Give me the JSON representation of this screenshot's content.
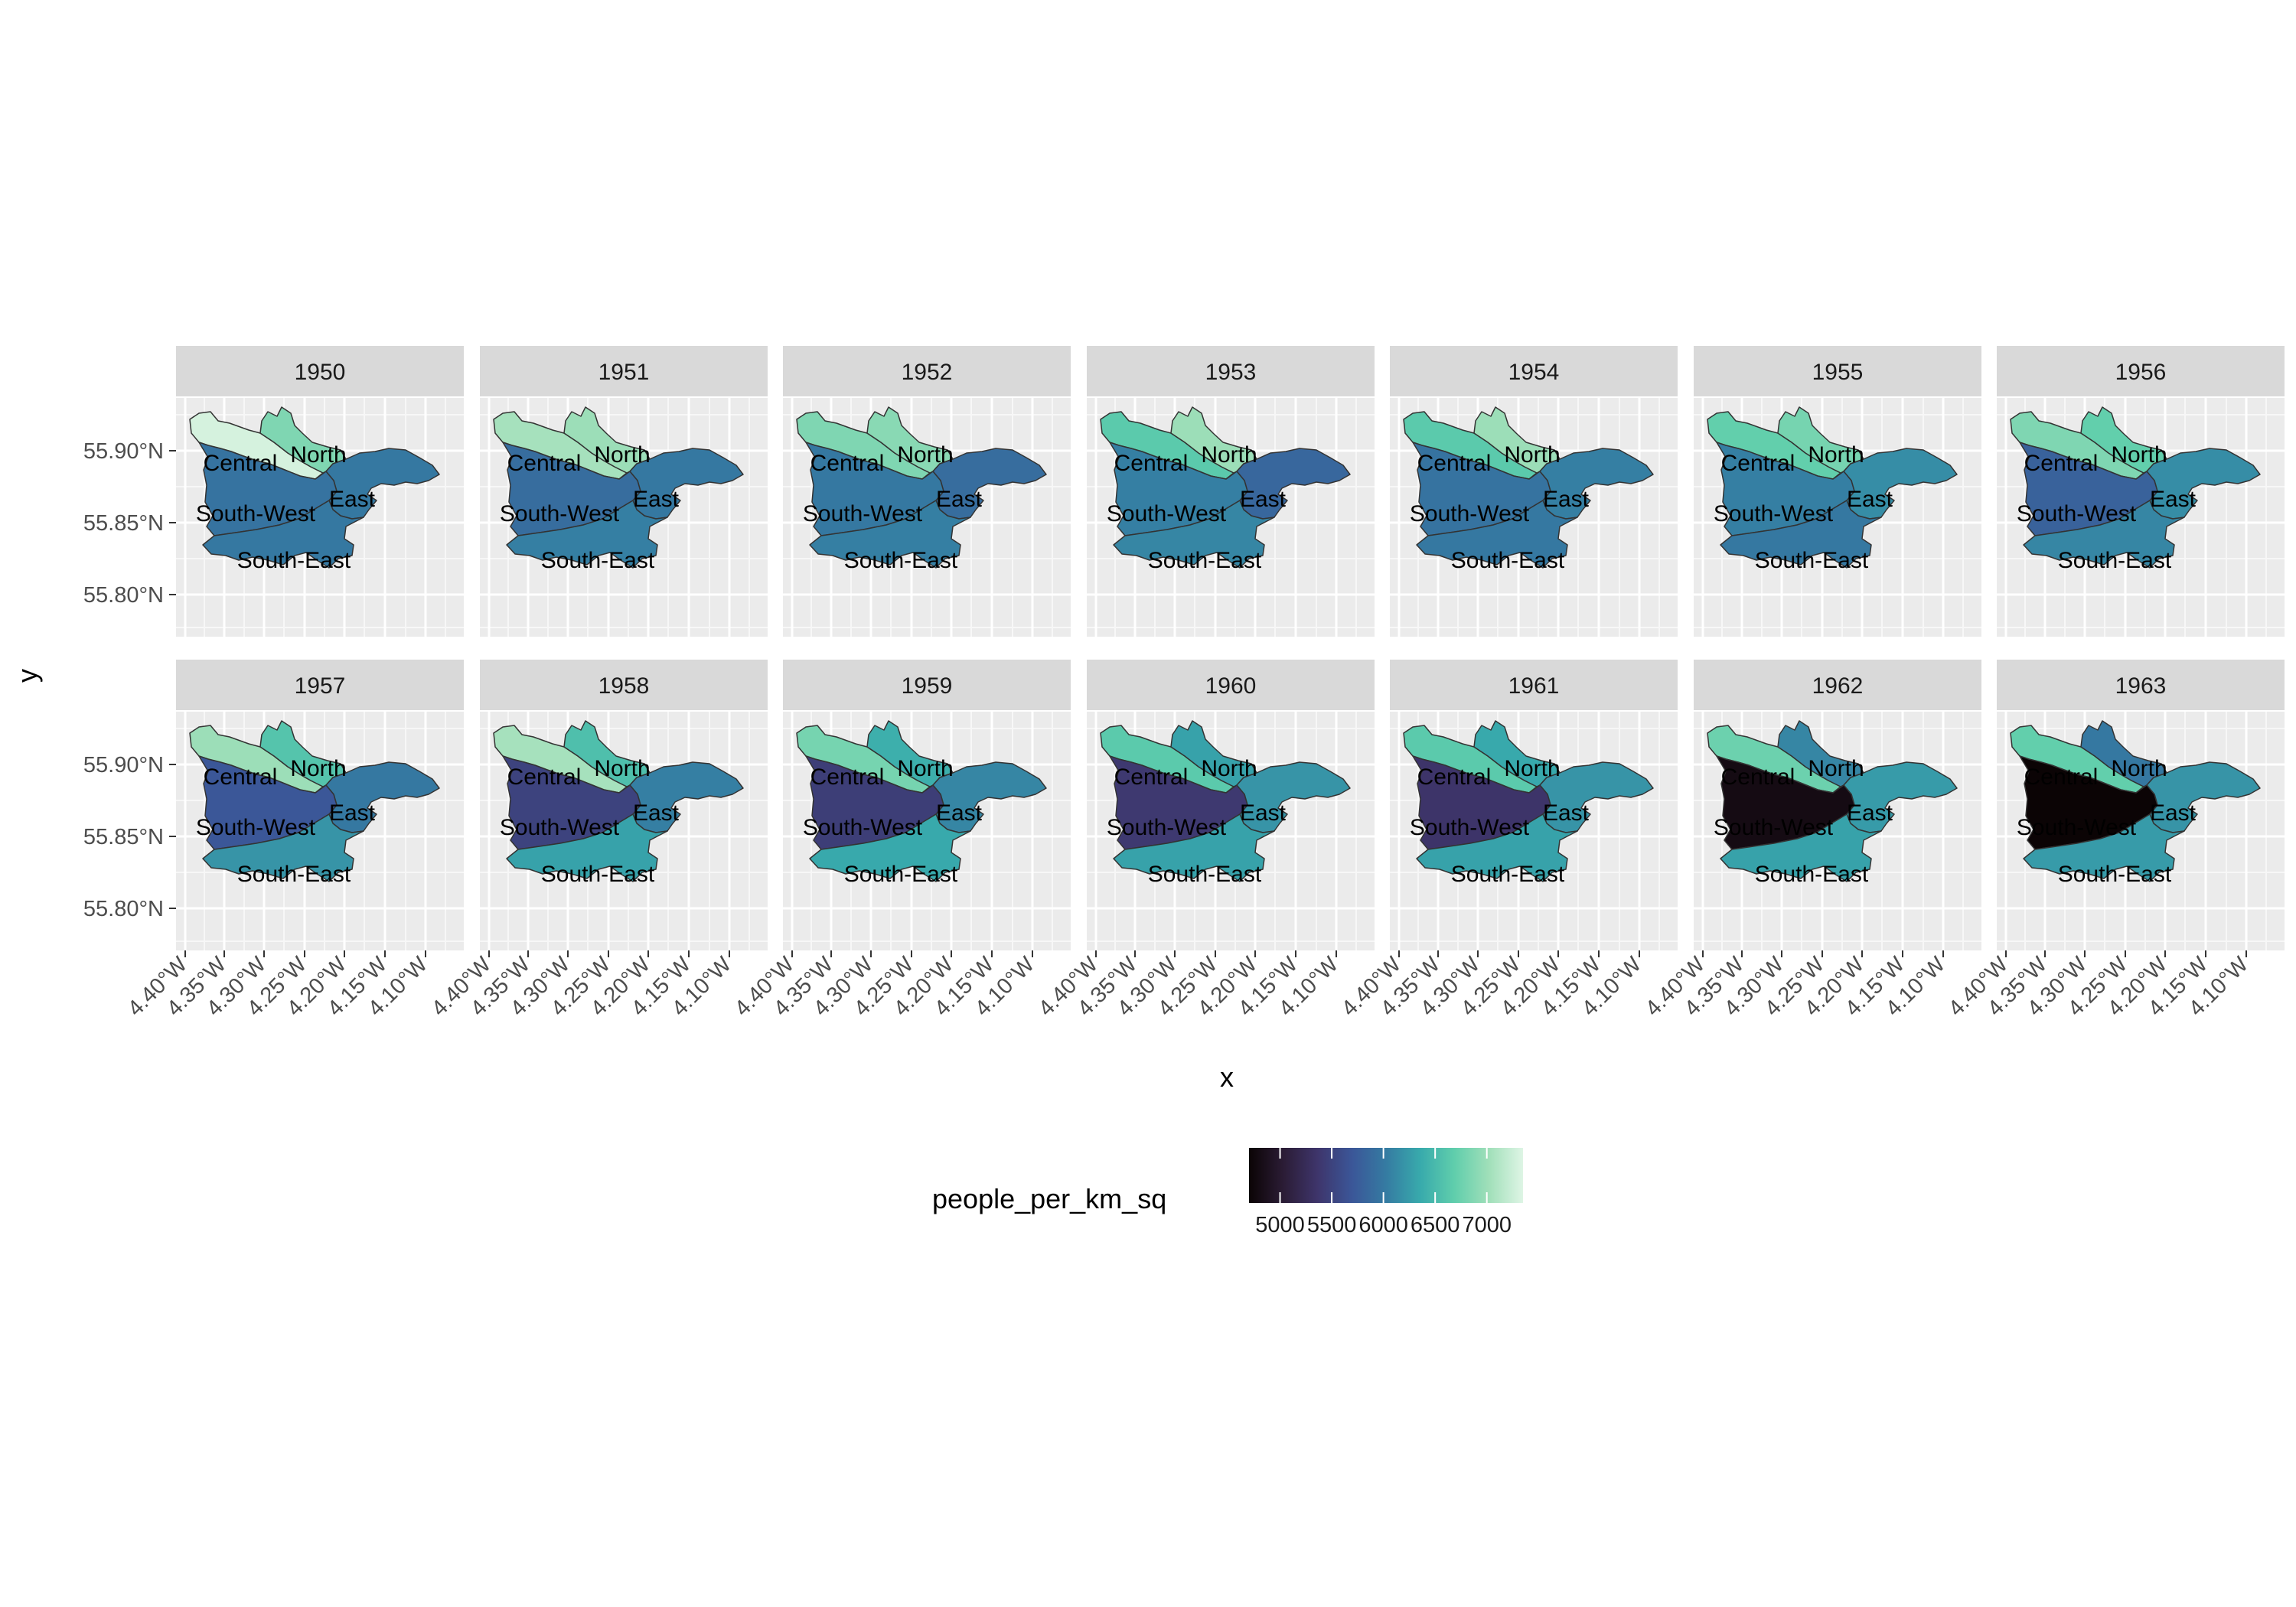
{
  "chart_data": {
    "type": "choropleth",
    "facet_variable_values": [
      "1950",
      "1951",
      "1952",
      "1953",
      "1954",
      "1955",
      "1956",
      "1957",
      "1958",
      "1959",
      "1960",
      "1961",
      "1962",
      "1963"
    ],
    "regions": [
      "Central",
      "North",
      "East",
      "South-West",
      "South-East"
    ],
    "x_axis": {
      "label": "x",
      "ticks": [
        "4.40°W",
        "4.35°W",
        "4.30°W",
        "4.25°W",
        "4.20°W",
        "4.15°W",
        "4.10°W"
      ],
      "values": [
        -4.4,
        -4.35,
        -4.3,
        -4.25,
        -4.2,
        -4.15,
        -4.1
      ]
    },
    "y_axis": {
      "label": "y",
      "ticks": [
        "55.90°N",
        "55.85°N",
        "55.80°N"
      ],
      "values": [
        55.9,
        55.85,
        55.8
      ]
    },
    "legend": {
      "title": "people_per_km_sq",
      "position": "bottom",
      "ticks": [
        "5000",
        "5500",
        "6000",
        "6500",
        "7000"
      ],
      "tick_values": [
        5000,
        5500,
        6000,
        6500,
        7000
      ],
      "range": [
        4700,
        7350
      ],
      "palette": [
        "#0b0405",
        "#2b1c35",
        "#3e356b",
        "#3b5698",
        "#357ba2",
        "#38aaac",
        "#60ceac",
        "#a0dfb9",
        "#def5e5"
      ]
    },
    "people_per_km_sq": {
      "1950": {
        "Central": 7300,
        "North": 6850,
        "East": 6000,
        "South-West": 5950,
        "South-East": 6000
      },
      "1951": {
        "Central": 7050,
        "North": 7000,
        "East": 6000,
        "South-West": 5900,
        "South-East": 6050
      },
      "1952": {
        "Central": 6850,
        "North": 6900,
        "East": 5900,
        "South-West": 6000,
        "South-East": 6050
      },
      "1953": {
        "Central": 6650,
        "North": 7000,
        "East": 5850,
        "South-West": 6050,
        "South-East": 6100
      },
      "1954": {
        "Central": 6650,
        "North": 7000,
        "East": 6050,
        "South-West": 5950,
        "South-East": 6000
      },
      "1955": {
        "Central": 6700,
        "North": 6800,
        "East": 6150,
        "South-West": 6050,
        "South-East": 6000
      },
      "1956": {
        "Central": 6850,
        "North": 6700,
        "East": 6150,
        "South-West": 5800,
        "South-East": 6100
      },
      "1957": {
        "Central": 7000,
        "North": 6600,
        "East": 6000,
        "South-West": 5700,
        "South-East": 6200
      },
      "1958": {
        "Central": 7050,
        "North": 6550,
        "East": 6050,
        "South-West": 5500,
        "South-East": 6300
      },
      "1959": {
        "Central": 6800,
        "North": 6400,
        "East": 6100,
        "South-West": 5450,
        "South-East": 6350
      },
      "1960": {
        "Central": 6650,
        "North": 6300,
        "East": 6200,
        "South-West": 5400,
        "South-East": 6300
      },
      "1961": {
        "Central": 6650,
        "North": 6350,
        "East": 6200,
        "South-West": 5350,
        "South-East": 6300
      },
      "1962": {
        "Central": 6750,
        "North": 6100,
        "East": 6250,
        "South-West": 4800,
        "South-East": 6300
      },
      "1963": {
        "Central": 6700,
        "North": 6000,
        "East": 6200,
        "South-West": 4700,
        "South-East": 6250
      }
    }
  }
}
